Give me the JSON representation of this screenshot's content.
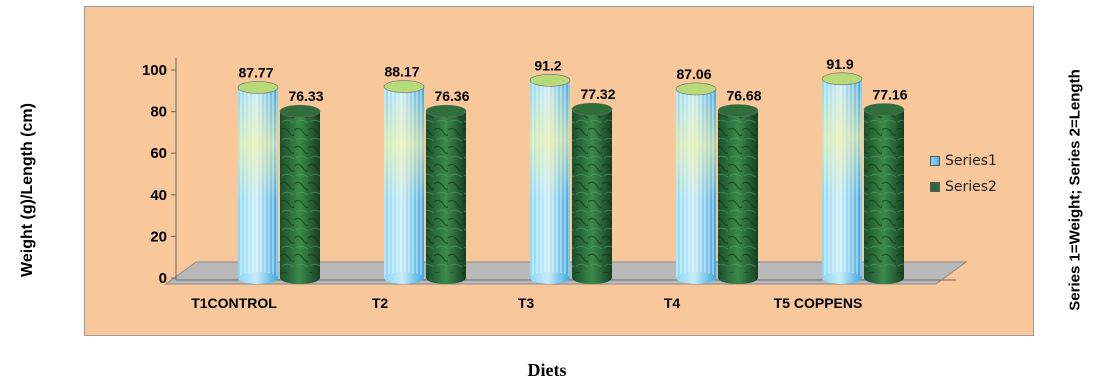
{
  "chart_data": {
    "type": "bar",
    "title": "",
    "xlabel": "Diets",
    "ylabel": "Weight (g)/Length (cm)",
    "side_note": "Series 1=Weight; Series 2=Length",
    "categories": [
      "T1CONTROL",
      "T2",
      "T3",
      "T4",
      "T5 COPPENS"
    ],
    "series": [
      {
        "name": "Series1",
        "values": [
          87.77,
          88.17,
          91.2,
          87.06,
          91.9
        ],
        "color": "#5ab8ea"
      },
      {
        "name": "Series2",
        "values": [
          76.33,
          76.36,
          77.32,
          76.68,
          77.16
        ],
        "color": "#2a6a3a"
      }
    ],
    "data_labels": {
      "series1": [
        "87.77",
        "88.17",
        "91.2",
        "87.06",
        "91.9"
      ],
      "series2": [
        "76.33",
        "76.36",
        "77.32",
        "76.68",
        "77.16"
      ]
    },
    "ylim": [
      0,
      100
    ],
    "yticks": [
      "0",
      "20",
      "40",
      "60",
      "80",
      "100"
    ],
    "grid": false,
    "legend": "right",
    "background": "#f8c79a",
    "floor_color": "#b9b9b9"
  }
}
